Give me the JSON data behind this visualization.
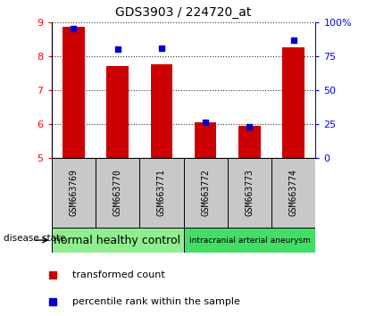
{
  "title": "GDS3903 / 224720_at",
  "samples": [
    "GSM663769",
    "GSM663770",
    "GSM663771",
    "GSM663772",
    "GSM663773",
    "GSM663774"
  ],
  "transformed_count": [
    8.85,
    7.7,
    7.75,
    6.05,
    5.95,
    8.25
  ],
  "percentile_rank": [
    95,
    80,
    81,
    26,
    23,
    87
  ],
  "ylim_left": [
    5,
    9
  ],
  "ylim_right": [
    0,
    100
  ],
  "yticks_left": [
    5,
    6,
    7,
    8,
    9
  ],
  "yticks_right": [
    0,
    25,
    50,
    75,
    100
  ],
  "ytick_right_labels": [
    "0",
    "25",
    "50",
    "75",
    "100%"
  ],
  "bar_color": "#cc0000",
  "dot_color": "#0000cc",
  "bar_width": 0.5,
  "groups": [
    {
      "label": "normal healthy control",
      "samples_idx": [
        0,
        1,
        2
      ],
      "color": "#90EE90",
      "fontsize": 9
    },
    {
      "label": "intracranial arterial aneurysm",
      "samples_idx": [
        3,
        4,
        5
      ],
      "color": "#44DD66",
      "fontsize": 6.5
    }
  ],
  "group_label_prefix": "disease state",
  "legend_bar_label": "transformed count",
  "legend_dot_label": "percentile rank within the sample",
  "tick_label_bg": "#c8c8c8",
  "figure_bg": "#ffffff"
}
